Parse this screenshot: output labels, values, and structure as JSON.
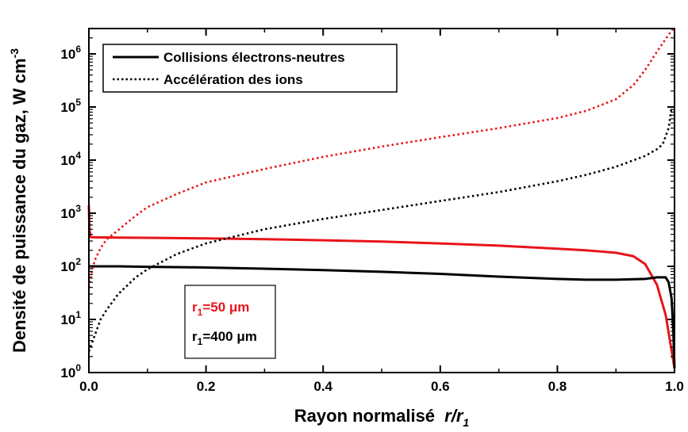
{
  "chart_data": {
    "type": "line",
    "xlabel": "Rayon normalisé",
    "xlabel_ratio": {
      "num": "r",
      "sep": "/",
      "den": "r",
      "den_sub": "1"
    },
    "ylabel": "Densité de puissance du gaz, W cm",
    "ylabel_sup": "-3",
    "xlim": [
      0.0,
      1.0
    ],
    "ylim": [
      1,
      3000000
    ],
    "yscale": "log",
    "grid": false,
    "x_ticks": [
      "0.0",
      "0.2",
      "0.4",
      "0.6",
      "0.8",
      "1.0"
    ],
    "y_ticks": [
      {
        "base": "10",
        "exp": "0"
      },
      {
        "base": "10",
        "exp": "1"
      },
      {
        "base": "10",
        "exp": "2"
      },
      {
        "base": "10",
        "exp": "3"
      },
      {
        "base": "10",
        "exp": "4"
      },
      {
        "base": "10",
        "exp": "5"
      },
      {
        "base": "10",
        "exp": "6"
      }
    ],
    "legend": {
      "position": "top-left",
      "entries": [
        {
          "label": "Collisions électrons-neutres",
          "style": "solid"
        },
        {
          "label": "Accélération des ions",
          "style": "dotted"
        }
      ]
    },
    "annotation": {
      "position": "center-left",
      "entries": [
        {
          "prefix": "r",
          "sub": "1",
          "suffix": "=50 μm",
          "color": "#e8141a"
        },
        {
          "prefix": "r",
          "sub": "1",
          "suffix": "=400 μm",
          "color": "#000000"
        }
      ]
    },
    "series": [
      {
        "color": "#e8141a",
        "style": "solid",
        "points": [
          [
            0.0,
            1400
          ],
          [
            0.001,
            500
          ],
          [
            0.003,
            355
          ],
          [
            0.01,
            352
          ],
          [
            0.05,
            348
          ],
          [
            0.1,
            345
          ],
          [
            0.2,
            335
          ],
          [
            0.3,
            325
          ],
          [
            0.4,
            310
          ],
          [
            0.5,
            292
          ],
          [
            0.6,
            270
          ],
          [
            0.7,
            245
          ],
          [
            0.8,
            215
          ],
          [
            0.85,
            200
          ],
          [
            0.9,
            180
          ],
          [
            0.93,
            155
          ],
          [
            0.95,
            110
          ],
          [
            0.97,
            45
          ],
          [
            0.985,
            12
          ],
          [
            1.0,
            1.2
          ]
        ]
      },
      {
        "color": "#000000",
        "style": "solid",
        "points": [
          [
            0.0,
            100
          ],
          [
            0.05,
            100
          ],
          [
            0.1,
            98
          ],
          [
            0.2,
            95
          ],
          [
            0.3,
            90
          ],
          [
            0.4,
            85
          ],
          [
            0.5,
            79
          ],
          [
            0.6,
            72
          ],
          [
            0.7,
            64
          ],
          [
            0.8,
            58
          ],
          [
            0.85,
            56
          ],
          [
            0.9,
            56
          ],
          [
            0.95,
            58
          ],
          [
            0.97,
            62
          ],
          [
            0.985,
            62
          ],
          [
            0.99,
            50
          ],
          [
            0.995,
            25
          ],
          [
            0.998,
            6
          ],
          [
            1.0,
            1.2
          ]
        ]
      },
      {
        "color": "#e8141a",
        "style": "dotted",
        "points": [
          [
            0.0,
            40
          ],
          [
            0.005,
            80
          ],
          [
            0.01,
            130
          ],
          [
            0.02,
            220
          ],
          [
            0.03,
            320
          ],
          [
            0.05,
            480
          ],
          [
            0.08,
            900
          ],
          [
            0.1,
            1300
          ],
          [
            0.15,
            2300
          ],
          [
            0.2,
            3800
          ],
          [
            0.3,
            6800
          ],
          [
            0.4,
            11500
          ],
          [
            0.5,
            18000
          ],
          [
            0.6,
            27000
          ],
          [
            0.7,
            40000
          ],
          [
            0.8,
            62000
          ],
          [
            0.85,
            85000
          ],
          [
            0.9,
            140000
          ],
          [
            0.93,
            260000
          ],
          [
            0.95,
            500000
          ],
          [
            0.97,
            1100000
          ],
          [
            0.99,
            2300000
          ],
          [
            1.0,
            3200000
          ]
        ]
      },
      {
        "color": "#000000",
        "style": "dotted",
        "points": [
          [
            0.0,
            2.5
          ],
          [
            0.005,
            3.5
          ],
          [
            0.01,
            5
          ],
          [
            0.02,
            10
          ],
          [
            0.03,
            15
          ],
          [
            0.05,
            30
          ],
          [
            0.08,
            62
          ],
          [
            0.1,
            88
          ],
          [
            0.15,
            170
          ],
          [
            0.2,
            270
          ],
          [
            0.3,
            500
          ],
          [
            0.4,
            780
          ],
          [
            0.5,
            1150
          ],
          [
            0.6,
            1700
          ],
          [
            0.7,
            2500
          ],
          [
            0.8,
            4000
          ],
          [
            0.85,
            5300
          ],
          [
            0.9,
            7500
          ],
          [
            0.95,
            12000
          ],
          [
            0.97,
            16000
          ],
          [
            0.98,
            20000
          ],
          [
            0.99,
            40000
          ],
          [
            0.995,
            100000
          ]
        ]
      }
    ]
  }
}
